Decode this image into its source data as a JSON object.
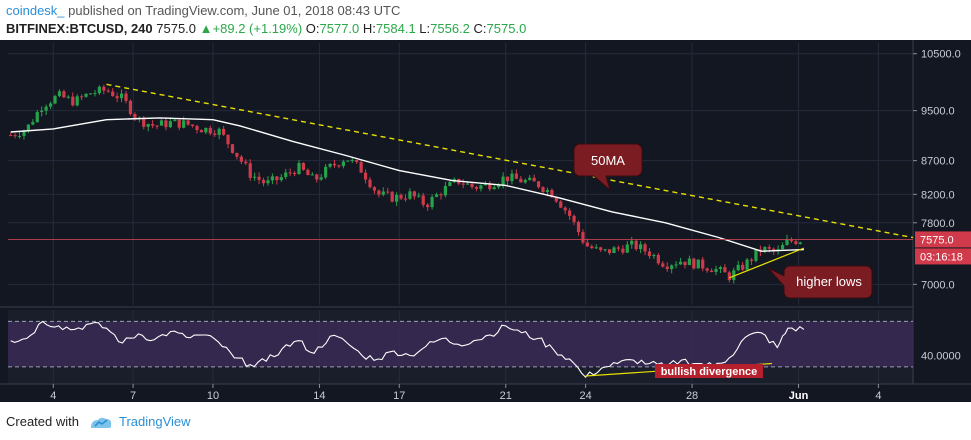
{
  "header": {
    "author": "coindesk_",
    "published": "published on TradingView.com, June 01, 2018 08:43 UTC",
    "symbol": "BITFINEX:BTCUSD, 240",
    "last": "7575.0",
    "change": "+89.2 (+1.19%)",
    "o_label": "O:",
    "o_val": "7577.0",
    "h_label": "H:",
    "h_val": "7584.1",
    "l_label": "L:",
    "l_val": "7556.2",
    "c_label": "C:",
    "c_val": "7575.0"
  },
  "footer": {
    "created_with": "Created with",
    "brand": "TradingView"
  },
  "colors": {
    "background": "#131722",
    "panel": "#1c2030",
    "grid": "#252b3b",
    "up": "#26a24a",
    "down": "#d13a4a",
    "ma": "#ffffff",
    "trend": "#e8e000",
    "rsi_band": "#3a2a55",
    "rsi_line": "#ffffff",
    "callout": "#7a1c22",
    "price_label": "#d13a4a"
  },
  "chart_data": {
    "type": "candlestick",
    "title": "BITFINEX:BTCUSD, 240",
    "price_axis": {
      "ticks": [
        "10500.0",
        "9500.0",
        "8700.0",
        "8200.0",
        "7800.0",
        "7000.0"
      ],
      "tick_values": [
        10500,
        9500,
        8700,
        8200,
        7800,
        7000
      ],
      "scale": "log"
    },
    "x_axis": {
      "ticks": [
        "4",
        "7",
        "10",
        "14",
        "17",
        "21",
        "24",
        "28",
        "Jun",
        "4"
      ],
      "tick_days": [
        4,
        7,
        10,
        14,
        17,
        21,
        24,
        28,
        32,
        35
      ],
      "range_days": [
        2.3,
        36.3
      ]
    },
    "price_series": [
      [
        2.4,
        9100
      ],
      [
        3.0,
        9200
      ],
      [
        3.6,
        9600
      ],
      [
        4.2,
        9750
      ],
      [
        4.8,
        9650
      ],
      [
        5.4,
        9800
      ],
      [
        6.0,
        9850
      ],
      [
        6.6,
        9700
      ],
      [
        7.2,
        9350
      ],
      [
        7.8,
        9250
      ],
      [
        8.4,
        9300
      ],
      [
        9.0,
        9280
      ],
      [
        9.6,
        9200
      ],
      [
        10.2,
        9180
      ],
      [
        10.8,
        8850
      ],
      [
        11.4,
        8500
      ],
      [
        12.0,
        8350
      ],
      [
        12.6,
        8450
      ],
      [
        13.2,
        8600
      ],
      [
        13.8,
        8400
      ],
      [
        14.4,
        8600
      ],
      [
        15.0,
        8750
      ],
      [
        15.6,
        8550
      ],
      [
        16.2,
        8200
      ],
      [
        16.8,
        8150
      ],
      [
        17.4,
        8200
      ],
      [
        18.0,
        8050
      ],
      [
        18.6,
        8250
      ],
      [
        19.2,
        8400
      ],
      [
        19.8,
        8300
      ],
      [
        20.4,
        8350
      ],
      [
        21.0,
        8450
      ],
      [
        21.6,
        8400
      ],
      [
        22.2,
        8350
      ],
      [
        22.8,
        8200
      ],
      [
        23.4,
        7900
      ],
      [
        24.0,
        7500
      ],
      [
        24.6,
        7400
      ],
      [
        25.2,
        7450
      ],
      [
        25.8,
        7500
      ],
      [
        26.4,
        7400
      ],
      [
        27.0,
        7250
      ],
      [
        27.6,
        7300
      ],
      [
        28.2,
        7250
      ],
      [
        28.8,
        7200
      ],
      [
        29.4,
        7100
      ],
      [
        30.0,
        7250
      ],
      [
        30.6,
        7450
      ],
      [
        31.2,
        7400
      ],
      [
        31.6,
        7550
      ],
      [
        32.2,
        7575
      ]
    ],
    "moving_average": {
      "label": "50MA",
      "points": [
        [
          2.4,
          9150
        ],
        [
          4.0,
          9200
        ],
        [
          6.0,
          9350
        ],
        [
          8.0,
          9380
        ],
        [
          10.0,
          9350
        ],
        [
          11.0,
          9250
        ],
        [
          13.0,
          9000
        ],
        [
          15.0,
          8780
        ],
        [
          17.0,
          8550
        ],
        [
          19.0,
          8400
        ],
        [
          21.0,
          8330
        ],
        [
          23.0,
          8150
        ],
        [
          25.0,
          7950
        ],
        [
          27.0,
          7800
        ],
        [
          29.0,
          7600
        ],
        [
          30.6,
          7420
        ],
        [
          32.2,
          7440
        ]
      ]
    },
    "trendlines": [
      {
        "name": "descending-resistance",
        "points": [
          [
            6.0,
            9950
          ],
          [
            36.3,
            7600
          ]
        ]
      },
      {
        "name": "higher-lows",
        "points": [
          [
            29.4,
            7080
          ],
          [
            32.2,
            7460
          ]
        ]
      }
    ],
    "last_price": {
      "value": 7575.0,
      "label": "7575.0",
      "countdown": "03:16:18"
    },
    "rsi": {
      "level_label": "40.0000",
      "levels": [
        30,
        70
      ],
      "ylim": [
        15,
        80
      ],
      "points": [
        [
          2.4,
          53
        ],
        [
          3.0,
          55
        ],
        [
          3.6,
          70
        ],
        [
          4.2,
          66
        ],
        [
          4.8,
          63
        ],
        [
          5.4,
          68
        ],
        [
          6.0,
          64
        ],
        [
          6.6,
          51
        ],
        [
          7.2,
          59
        ],
        [
          7.8,
          54
        ],
        [
          8.4,
          61
        ],
        [
          9.0,
          56
        ],
        [
          9.6,
          58
        ],
        [
          10.2,
          52
        ],
        [
          10.8,
          38
        ],
        [
          11.4,
          32
        ],
        [
          12.0,
          35
        ],
        [
          12.6,
          46
        ],
        [
          13.2,
          53
        ],
        [
          13.8,
          42
        ],
        [
          14.4,
          57
        ],
        [
          15.0,
          52
        ],
        [
          15.6,
          40
        ],
        [
          16.2,
          37
        ],
        [
          16.8,
          44
        ],
        [
          17.4,
          40
        ],
        [
          18.0,
          48
        ],
        [
          18.6,
          55
        ],
        [
          19.2,
          50
        ],
        [
          19.8,
          53
        ],
        [
          20.4,
          58
        ],
        [
          21.0,
          66
        ],
        [
          21.6,
          60
        ],
        [
          22.2,
          55
        ],
        [
          22.8,
          45
        ],
        [
          23.4,
          37
        ],
        [
          24.0,
          21
        ],
        [
          24.6,
          29
        ],
        [
          25.2,
          33
        ],
        [
          25.8,
          36
        ],
        [
          26.4,
          33
        ],
        [
          27.0,
          30
        ],
        [
          27.6,
          36
        ],
        [
          28.2,
          33
        ],
        [
          28.8,
          31
        ],
        [
          29.4,
          38
        ],
        [
          30.0,
          56
        ],
        [
          30.6,
          60
        ],
        [
          31.2,
          47
        ],
        [
          31.6,
          64
        ],
        [
          32.2,
          63
        ]
      ],
      "divergence_line": [
        [
          24.0,
          22
        ],
        [
          31.0,
          33
        ]
      ]
    },
    "annotations": {
      "ma_callout": "50MA",
      "higher_lows": "higher lows",
      "bullish_divergence": "bullish divergence"
    }
  }
}
